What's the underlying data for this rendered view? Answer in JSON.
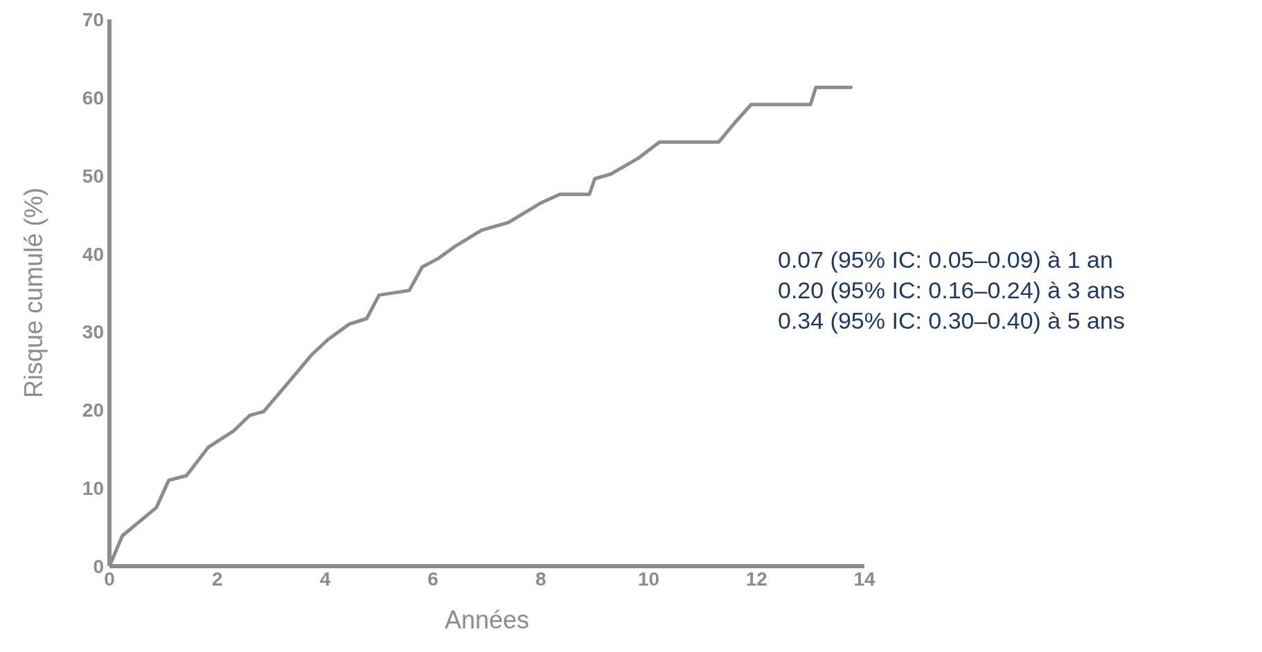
{
  "chart_data": {
    "type": "line",
    "xlabel": "Années",
    "ylabel": "Risque cumulé (%)",
    "x": [
      0,
      0.24,
      0.87,
      1.1,
      1.43,
      1.83,
      2.3,
      2.6,
      2.86,
      3.5,
      3.74,
      4.05,
      4.45,
      4.77,
      5.0,
      5.56,
      5.8,
      6.1,
      6.4,
      6.9,
      7.4,
      8.0,
      8.35,
      8.9,
      9.0,
      9.3,
      9.8,
      10.2,
      11.3,
      11.6,
      11.9,
      13.0,
      13.1,
      13.75
    ],
    "series": [
      {
        "color": "#8c8c8c",
        "values": [
          0,
          3.9,
          7.5,
          11,
          11.6,
          15.2,
          17.3,
          19.3,
          19.8,
          25,
          27,
          29,
          31,
          31.7,
          34.7,
          35.3,
          38.3,
          39.4,
          40.9,
          43,
          44,
          46.5,
          47.6,
          47.6,
          49.6,
          50.2,
          52.2,
          54.3,
          54.3,
          56.8,
          59.1,
          59.1,
          61.3,
          61.3
        ]
      }
    ],
    "xlim": [
      0,
      14
    ],
    "xticks": [
      0,
      2,
      4,
      6,
      8,
      10,
      12,
      14
    ],
    "ylim": [
      0,
      70
    ],
    "yticks": [
      0,
      10,
      20,
      30,
      40,
      50,
      60,
      70
    ],
    "grid": false,
    "marker": "none",
    "line_style": "solid",
    "legend": false,
    "annotations": [
      "0.07 (95% IC: 0.05–0.09) à 1 an",
      "0.20 (95% IC: 0.16–0.24) à 3 ans",
      "0.34 (95% IC: 0.30–0.40) à 5 ans"
    ]
  }
}
